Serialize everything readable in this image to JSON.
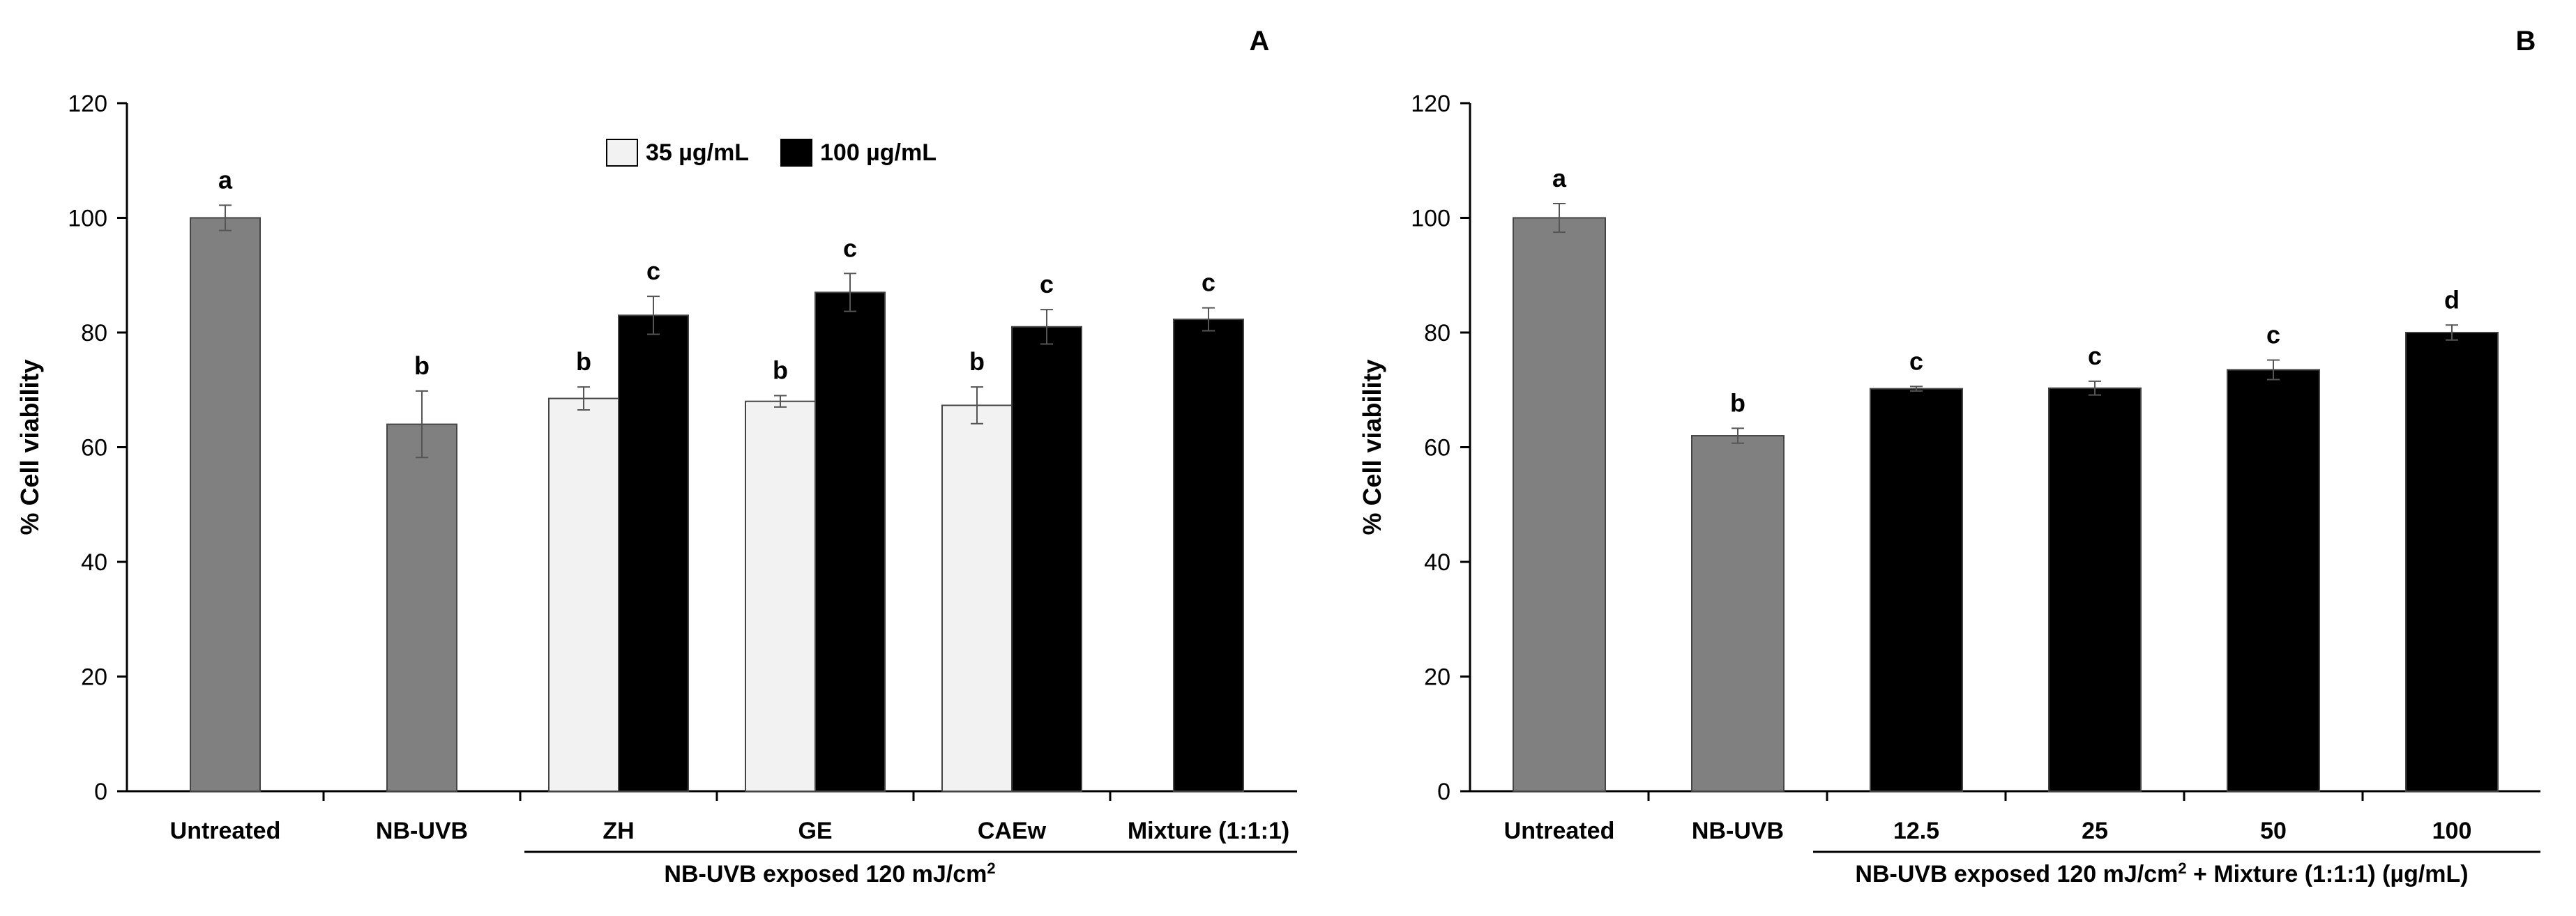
{
  "colors": {
    "untreated": "#808080",
    "light": "#f2f2f2",
    "dark": "#000000",
    "axis": "#000000"
  },
  "chart_data": [
    {
      "type": "bar",
      "panel_label": "A",
      "ylabel": "% Cell viability",
      "ylim": [
        0,
        120
      ],
      "yticks": [
        0,
        20,
        40,
        60,
        80,
        100,
        120
      ],
      "categories": [
        "Untreated",
        "NB-UVB",
        "ZH",
        "GE",
        "CAEw",
        "Mixture (1:1:1)"
      ],
      "group_label": "NB-UVB exposed 120 mJ/cm",
      "group_label_sup": "2",
      "legend": [
        {
          "label": "35 µg/mL",
          "color": "#f2f2f2"
        },
        {
          "label": "100 µg/mL",
          "color": "#000000"
        }
      ],
      "bars": [
        {
          "category": "Untreated",
          "value": 100,
          "error": 2.2,
          "color": "#808080",
          "letter": "a",
          "slot": "single"
        },
        {
          "category": "NB-UVB",
          "value": 64,
          "error": 5.8,
          "color": "#808080",
          "letter": "b",
          "slot": "single"
        },
        {
          "category": "ZH",
          "series": "35 µg/mL",
          "value": 68.5,
          "error": 2.0,
          "color": "#f2f2f2",
          "letter": "b",
          "slot": "left"
        },
        {
          "category": "ZH",
          "series": "100 µg/mL",
          "value": 83,
          "error": 3.3,
          "color": "#000000",
          "letter": "c",
          "slot": "right"
        },
        {
          "category": "GE",
          "series": "35 µg/mL",
          "value": 68,
          "error": 1.0,
          "color": "#f2f2f2",
          "letter": "b",
          "slot": "left"
        },
        {
          "category": "GE",
          "series": "100 µg/mL",
          "value": 87,
          "error": 3.3,
          "color": "#000000",
          "letter": "c",
          "slot": "right"
        },
        {
          "category": "CAEw",
          "series": "35 µg/mL",
          "value": 67.3,
          "error": 3.2,
          "color": "#f2f2f2",
          "letter": "b",
          "slot": "left"
        },
        {
          "category": "CAEw",
          "series": "100 µg/mL",
          "value": 81,
          "error": 3.0,
          "color": "#000000",
          "letter": "c",
          "slot": "right"
        },
        {
          "category": "Mixture (1:1:1)",
          "series": "100 µg/mL",
          "value": 82.3,
          "error": 2.0,
          "color": "#000000",
          "letter": "c",
          "slot": "single"
        }
      ]
    },
    {
      "type": "bar",
      "panel_label": "B",
      "ylabel": "% Cell viability",
      "ylim": [
        0,
        120
      ],
      "yticks": [
        0,
        20,
        40,
        60,
        80,
        100,
        120
      ],
      "categories": [
        "Untreated",
        "NB-UVB",
        "12.5",
        "25",
        "50",
        "100"
      ],
      "group_label": "NB-UVB exposed 120 mJ/cm",
      "group_label_sup": "2",
      "group_label_suffix": " + Mixture (1:1:1) (µg/mL)",
      "bars": [
        {
          "category": "Untreated",
          "value": 100,
          "error": 2.5,
          "color": "#808080",
          "letter": "a",
          "slot": "single"
        },
        {
          "category": "NB-UVB",
          "value": 62,
          "error": 1.3,
          "color": "#808080",
          "letter": "b",
          "slot": "single"
        },
        {
          "category": "12.5",
          "value": 70.2,
          "error": 0.4,
          "color": "#000000",
          "letter": "c",
          "slot": "single"
        },
        {
          "category": "25",
          "value": 70.3,
          "error": 1.2,
          "color": "#000000",
          "letter": "c",
          "slot": "single"
        },
        {
          "category": "50",
          "value": 73.5,
          "error": 1.7,
          "color": "#000000",
          "letter": "c",
          "slot": "single"
        },
        {
          "category": "100",
          "value": 80,
          "error": 1.3,
          "color": "#000000",
          "letter": "d",
          "slot": "single"
        }
      ]
    }
  ]
}
